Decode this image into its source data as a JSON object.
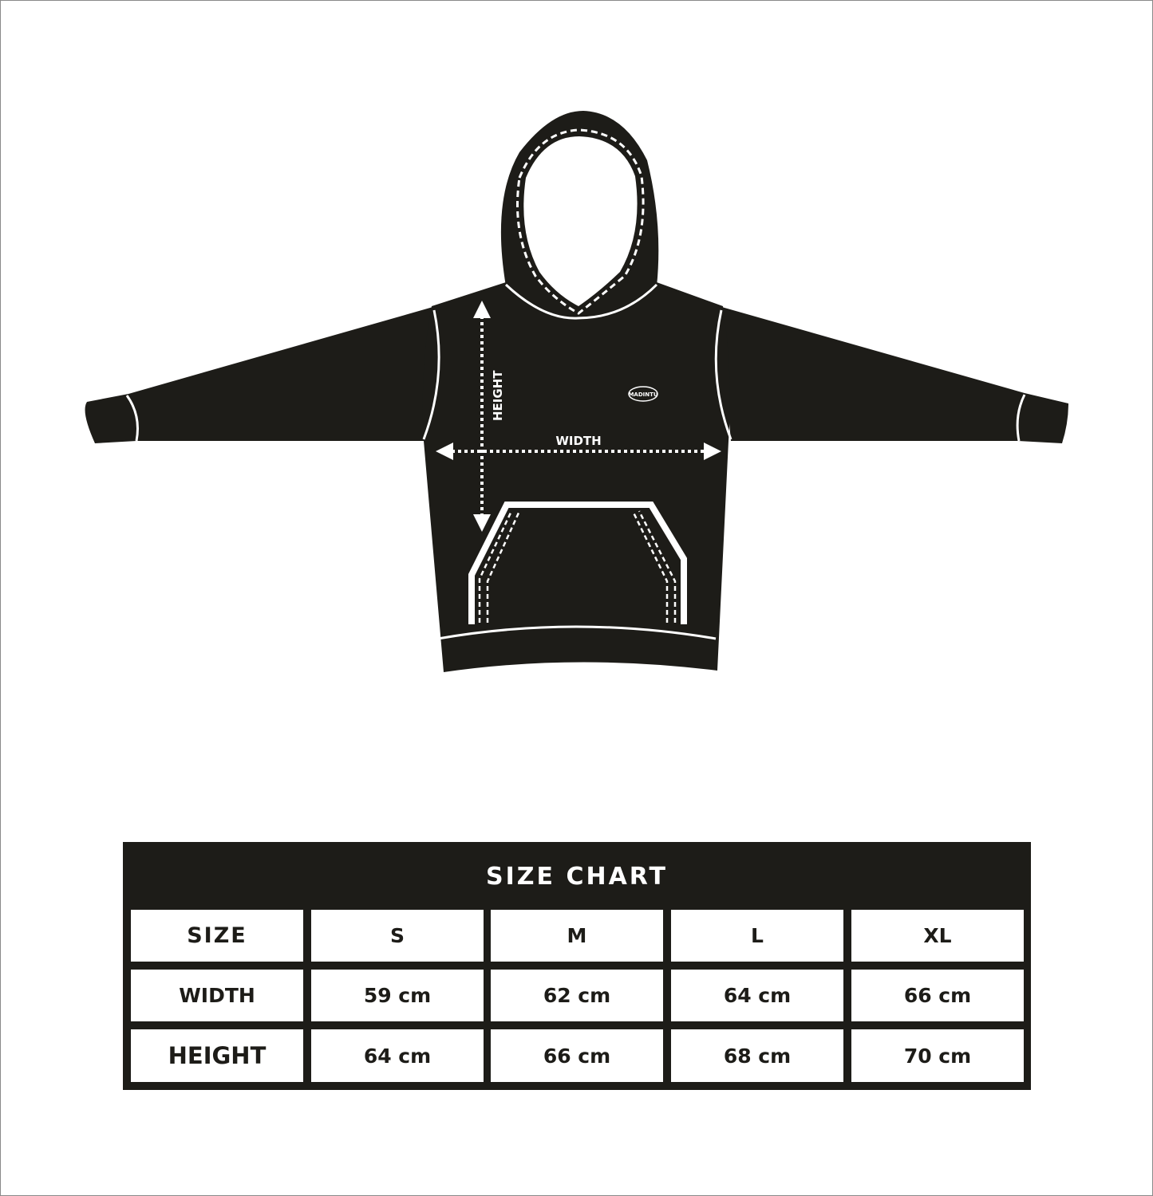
{
  "diagram": {
    "height_label": "HEIGHT",
    "width_label": "WIDTH",
    "logo_text": "MADINTU"
  },
  "size_chart": {
    "title": "SIZE CHART",
    "header": [
      "SIZE",
      "S",
      "M",
      "L",
      "XL"
    ],
    "rows": [
      [
        "WIDTH",
        "59 cm",
        "62 cm",
        "64 cm",
        "66 cm"
      ],
      [
        "HEIGHT",
        "64 cm",
        "66 cm",
        "68 cm",
        "70 cm"
      ]
    ]
  },
  "colors": {
    "garment": "#1d1c18",
    "background": "#ffffff"
  }
}
